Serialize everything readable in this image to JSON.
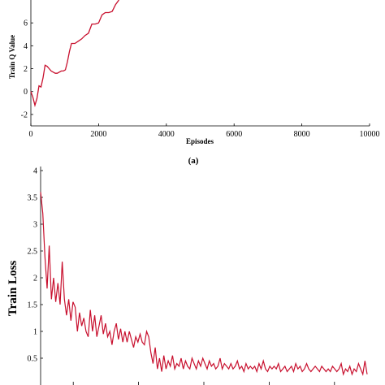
{
  "chart_data": [
    {
      "type": "line",
      "panel_label": "(a)",
      "xlabel": "Episodes",
      "ylabel": "Train Q Value",
      "xlim": [
        0,
        10000
      ],
      "ylim": [
        -3,
        8
      ],
      "x_ticks": [
        0,
        2000,
        4000,
        6000,
        8000,
        10000
      ],
      "y_ticks": [
        -2,
        0,
        2,
        4,
        6
      ],
      "line_color": "#c8102e",
      "grid": false,
      "series": [
        {
          "x": [
            0,
            60,
            120,
            180,
            240,
            300,
            360,
            420,
            480,
            540,
            600,
            660,
            720,
            780,
            840,
            900,
            960,
            1020,
            1080,
            1140,
            1200,
            1300,
            1400,
            1500,
            1600,
            1700,
            1800,
            1900,
            2000,
            2100,
            2200,
            2300,
            2400,
            2500,
            2600
          ],
          "y": [
            0.0,
            -0.5,
            -1.2,
            -0.6,
            0.5,
            0.4,
            1.2,
            2.3,
            2.2,
            2.0,
            1.8,
            1.7,
            1.6,
            1.6,
            1.7,
            1.8,
            1.8,
            1.9,
            2.6,
            3.5,
            4.2,
            4.2,
            4.4,
            4.6,
            4.9,
            5.1,
            5.9,
            5.9,
            6.0,
            6.7,
            6.9,
            6.9,
            7.0,
            7.6,
            8.2
          ]
        }
      ]
    },
    {
      "type": "line",
      "ylabel": "Train Loss",
      "ylim": [
        0,
        4
      ],
      "y_ticks": [
        0.5,
        1,
        1.5,
        2,
        2.5,
        3,
        3.5,
        4
      ],
      "y_tick_labels": [
        "0.5",
        "1",
        "1.5",
        "2",
        "2.5",
        "3",
        "3.5",
        "4"
      ],
      "line_color": "#c8102e",
      "grid": false,
      "series": [
        {
          "y": [
            3.6,
            3.2,
            2.4,
            1.8,
            2.6,
            1.6,
            2.0,
            1.55,
            1.9,
            1.5,
            2.3,
            1.6,
            1.3,
            1.6,
            1.2,
            1.55,
            1.45,
            1.0,
            1.35,
            1.1,
            1.25,
            1.0,
            0.9,
            1.4,
            1.0,
            1.3,
            0.9,
            1.1,
            1.3,
            0.95,
            1.15,
            0.9,
            1.0,
            0.75,
            1.0,
            1.15,
            0.85,
            1.05,
            0.8,
            1.0,
            0.8,
            1.0,
            0.85,
            0.7,
            0.9,
            0.8,
            0.95,
            0.8,
            0.75,
            1.0,
            0.9,
            0.6,
            0.4,
            0.7,
            0.3,
            0.5,
            0.25,
            0.55,
            0.3,
            0.45,
            0.35,
            0.55,
            0.3,
            0.4,
            0.35,
            0.5,
            0.3,
            0.45,
            0.35,
            0.3,
            0.5,
            0.4,
            0.3,
            0.45,
            0.35,
            0.5,
            0.4,
            0.3,
            0.45,
            0.35,
            0.4,
            0.3,
            0.35,
            0.5,
            0.3,
            0.4,
            0.35,
            0.3,
            0.4,
            0.3,
            0.35,
            0.45,
            0.3,
            0.35,
            0.25,
            0.4,
            0.3,
            0.35,
            0.3,
            0.35,
            0.25,
            0.4,
            0.3,
            0.45,
            0.3,
            0.25,
            0.35,
            0.3,
            0.35,
            0.3,
            0.4,
            0.25,
            0.3,
            0.35,
            0.25,
            0.3,
            0.35,
            0.25,
            0.4,
            0.3,
            0.35,
            0.25,
            0.3,
            0.4,
            0.3,
            0.25,
            0.3,
            0.35,
            0.3,
            0.25,
            0.35,
            0.3,
            0.25,
            0.3,
            0.25,
            0.35,
            0.3,
            0.25,
            0.3,
            0.4,
            0.2,
            0.3,
            0.25,
            0.35,
            0.2,
            0.3,
            0.25,
            0.4,
            0.3,
            0.2,
            0.45,
            0.2
          ]
        }
      ]
    }
  ]
}
